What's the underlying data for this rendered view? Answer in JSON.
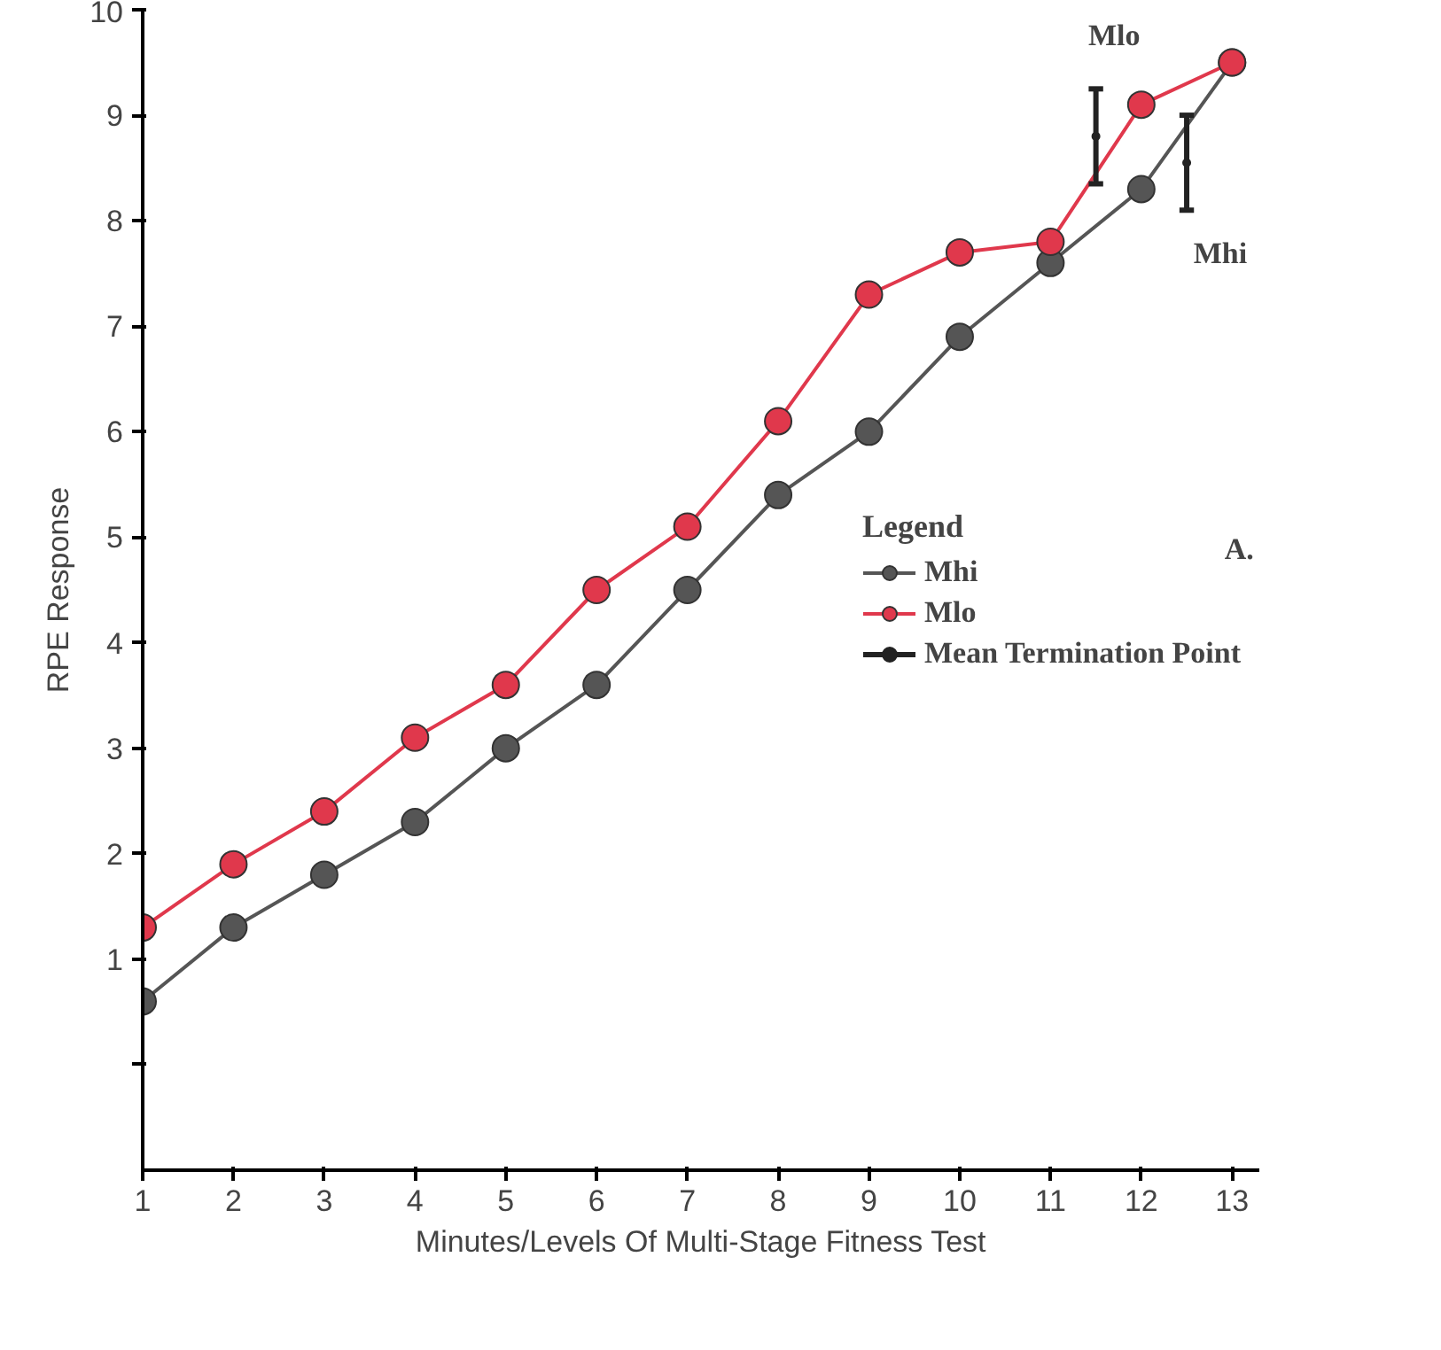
{
  "chart_data": {
    "type": "line",
    "xlabel": "Minutes/Levels Of Multi-Stage Fitness Test",
    "ylabel": "RPE Response",
    "legend_title": "Legend",
    "x": [
      1,
      2,
      3,
      4,
      5,
      6,
      7,
      8,
      9,
      10,
      11,
      12,
      13
    ],
    "series": [
      {
        "name": "Mhi",
        "color": "#555555",
        "values": [
          0.6,
          1.3,
          1.8,
          2.3,
          3.0,
          3.6,
          4.5,
          5.4,
          6.0,
          6.9,
          7.6,
          8.3,
          9.5
        ]
      },
      {
        "name": "Mlo",
        "color": "#e0384c",
        "values": [
          1.3,
          1.9,
          2.4,
          3.1,
          3.6,
          4.5,
          5.1,
          6.1,
          7.3,
          7.7,
          7.8,
          9.1,
          9.5
        ]
      },
      {
        "name": "Mean Termination Point",
        "type": "scatter",
        "marker": "circle",
        "color": "#222222",
        "x": [
          11.5,
          12.5
        ],
        "values": [
          8.8,
          8.55
        ],
        "errors": [
          [
            8.35,
            9.25
          ],
          [
            8.1,
            9.0
          ]
        ]
      }
    ],
    "marker": "circle",
    "xlim": [
      1,
      13.3
    ],
    "xticks": [
      1,
      2,
      3,
      4,
      5,
      6,
      7,
      8,
      9,
      10,
      11,
      12,
      13
    ],
    "ylim": [
      -1,
      10
    ],
    "yticks": [
      {
        "value": 0,
        "label": null
      },
      1,
      2,
      3,
      4,
      5,
      6,
      7,
      8,
      9,
      10
    ],
    "grid": false,
    "legend": "right",
    "annotations": [
      "Mlo",
      "Mhi",
      "A."
    ]
  }
}
